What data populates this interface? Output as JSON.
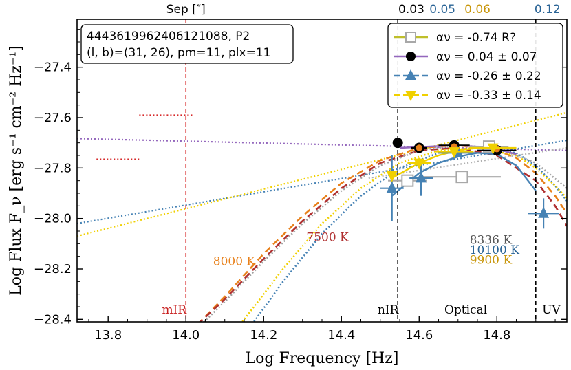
{
  "chart_data": {
    "type": "scatter",
    "title": "",
    "xlabel": "Log Frequency [Hz]",
    "ylabel": "Log Flux F_ν [erg s⁻¹ cm⁻² Hz⁻¹]",
    "xlim": [
      13.72,
      14.98
    ],
    "ylim": [
      -28.41,
      -27.21
    ],
    "xticks": [
      13.8,
      14.0,
      14.2,
      14.4,
      14.6,
      14.8
    ],
    "xtick_labels": [
      "13.8",
      "14.0",
      "14.2",
      "14.4",
      "14.6",
      "14.8"
    ],
    "yticks": [
      -28.4,
      -28.2,
      -28.0,
      -27.8,
      -27.6,
      -27.4
    ],
    "ytick_labels": [
      "−28.4",
      "−28.2",
      "−28.0",
      "−27.8",
      "−27.6",
      "−27.4"
    ],
    "info_box": {
      "line1": "4443619962406121088, P2",
      "line2": "(l, b)=(31, 26), pm=11, plx=11"
    },
    "top_axis": {
      "label": "Sep [″]",
      "labels": [
        {
          "text": "0.03",
          "x": 14.58,
          "color": "#000000"
        },
        {
          "text": "0.05",
          "x": 14.66,
          "color": "#2a6496"
        },
        {
          "text": "0.06",
          "x": 14.75,
          "color": "#c8960a"
        },
        {
          "text": "0.12",
          "x": 14.93,
          "color": "#2a6496"
        }
      ]
    },
    "legend": [
      {
        "label": "αν = -0.74   R?",
        "color": "#bfbf2a",
        "marker": "square-open",
        "dashed": false
      },
      {
        "label": "αν =  0.04 ± 0.07",
        "color": "#9467bd",
        "marker": "circle",
        "dashed": false
      },
      {
        "label": "αν = -0.26 ± 0.22",
        "color": "#4682b4",
        "marker": "triangle-up",
        "dashed": true
      },
      {
        "label": "αν = -0.33 ± 0.14",
        "color": "#f0d000",
        "marker": "triangle-down",
        "dashed": true
      }
    ],
    "vlines": [
      {
        "x": 14.0,
        "color": "#d62728",
        "label": "mIR"
      },
      {
        "x": 14.545,
        "color": "#000000",
        "label": "nIR"
      },
      {
        "x": 14.9,
        "color": "#000000",
        "label": "UV"
      }
    ],
    "region_labels": [
      {
        "text": "mIR",
        "x": 13.97,
        "color": "#c82020"
      },
      {
        "text": "nIR",
        "x": 14.52,
        "color": "#000000"
      },
      {
        "text": "Optical",
        "x": 14.72,
        "color": "#000000"
      },
      {
        "text": "UV",
        "x": 14.94,
        "color": "#000000"
      }
    ],
    "temperature_labels": [
      {
        "text": "8000 K",
        "x": 14.07,
        "y": -28.185,
        "color": "#e8801a"
      },
      {
        "text": "7500 K",
        "x": 14.31,
        "y": -28.09,
        "color": "#b03030"
      },
      {
        "text": "8336 K",
        "x": 14.73,
        "y": -28.1,
        "color": "#555555"
      },
      {
        "text": "10100 K",
        "x": 14.73,
        "y": -28.14,
        "color": "#2a6496"
      },
      {
        "text": "9900 K",
        "x": 14.73,
        "y": -28.18,
        "color": "#c8960a"
      }
    ],
    "powerlaw_lines": [
      {
        "name": "purple",
        "color": "#9467bd",
        "x": [
          13.72,
          14.98
        ],
        "y": [
          -27.683,
          -27.73
        ]
      },
      {
        "name": "blue",
        "color": "#4682b4",
        "x": [
          13.72,
          14.98
        ],
        "y": [
          -28.02,
          -27.69
        ]
      },
      {
        "name": "yellow",
        "color": "#f0d000",
        "x": [
          13.72,
          14.98
        ],
        "y": [
          -28.07,
          -27.58
        ]
      },
      {
        "name": "grey",
        "color": "#b0b0b0",
        "x": [
          14.47,
          14.98
        ],
        "y": [
          -27.84,
          -27.72
        ]
      }
    ],
    "blackbody_curves": [
      {
        "name": "8000 K",
        "color": "#e8801a",
        "dashed": true,
        "x": [
          14.03,
          14.1,
          14.2,
          14.3,
          14.4,
          14.5,
          14.6,
          14.7,
          14.8,
          14.85,
          14.9,
          14.95,
          14.98
        ],
        "y": [
          -28.42,
          -28.31,
          -28.14,
          -27.99,
          -27.86,
          -27.77,
          -27.72,
          -27.71,
          -27.73,
          -27.76,
          -27.82,
          -27.91,
          -27.98
        ]
      },
      {
        "name": "7500 K",
        "color": "#b03030",
        "dashed": true,
        "x": [
          14.03,
          14.1,
          14.2,
          14.3,
          14.4,
          14.5,
          14.6,
          14.7,
          14.8,
          14.9,
          14.95,
          14.98
        ],
        "y": [
          -28.42,
          -28.32,
          -28.16,
          -28.01,
          -27.88,
          -27.78,
          -27.73,
          -27.72,
          -27.75,
          -27.85,
          -27.95,
          -28.03
        ]
      },
      {
        "name": "8336 K",
        "color": "#a0a0a0",
        "dashed": false,
        "x": [
          14.04,
          14.1,
          14.2,
          14.3,
          14.4,
          14.5,
          14.6,
          14.7,
          14.8,
          14.9,
          14.98
        ],
        "y": [
          -28.42,
          -28.33,
          -28.17,
          -28.02,
          -27.89,
          -27.79,
          -27.73,
          -27.71,
          -27.72,
          -27.78,
          -27.88
        ]
      },
      {
        "name": "10100 K blue dotted",
        "color": "#4682b4",
        "dashed": false,
        "x": [
          14.17,
          14.25,
          14.35,
          14.45,
          14.55,
          14.65,
          14.75,
          14.85,
          14.9,
          14.95,
          14.98
        ],
        "y": [
          -28.42,
          -28.25,
          -28.06,
          -27.91,
          -27.8,
          -27.74,
          -27.72,
          -27.74,
          -27.79,
          -27.87,
          -27.93
        ]
      },
      {
        "name": "9900 K yellow dotted",
        "color": "#f0d000",
        "dashed": false,
        "x": [
          14.14,
          14.25,
          14.35,
          14.45,
          14.55,
          14.65,
          14.75,
          14.85,
          14.9,
          14.95,
          14.98
        ],
        "y": [
          -28.42,
          -28.2,
          -28.02,
          -27.88,
          -27.78,
          -27.73,
          -27.72,
          -27.75,
          -27.8,
          -27.87,
          -27.92
        ]
      }
    ],
    "fit_curves": [
      {
        "name": "blue fit",
        "color": "#4682b4",
        "x": [
          14.53,
          14.6,
          14.65,
          14.7,
          14.75,
          14.8,
          14.85,
          14.9
        ],
        "y": [
          -27.91,
          -27.82,
          -27.78,
          -27.755,
          -27.74,
          -27.745,
          -27.79,
          -27.89
        ]
      },
      {
        "name": "purple fit",
        "color": "#9467bd",
        "x": [
          14.55,
          14.62,
          14.69,
          14.75,
          14.8,
          14.85
        ],
        "y": [
          -27.72,
          -27.715,
          -27.71,
          -27.715,
          -27.725,
          -27.745
        ]
      },
      {
        "name": "yellow fit",
        "color": "#f0d000",
        "x": [
          14.53,
          14.6,
          14.65,
          14.7,
          14.75,
          14.8
        ],
        "y": [
          -27.84,
          -27.78,
          -27.75,
          -27.73,
          -27.72,
          -27.72
        ]
      }
    ],
    "limits": [
      {
        "x": [
          13.88,
          14.02
        ],
        "y": -27.59,
        "color": "#d62728"
      },
      {
        "x": [
          13.77,
          13.88
        ],
        "y": -27.765,
        "color": "#d62728"
      }
    ],
    "series": [
      {
        "name": "grey (R?)",
        "color": "#a8a8a8",
        "marker": "square-open",
        "points": [
          {
            "x": 14.57,
            "y": -27.85,
            "xerr": 0.05,
            "yerr": 0.01
          },
          {
            "x": 14.71,
            "y": -27.835,
            "xerr": 0.1,
            "yerr": 0.01
          },
          {
            "x": 14.78,
            "y": -27.715,
            "xerr": 0.05,
            "yerr": 0.01
          }
        ]
      },
      {
        "name": "black",
        "color": "#000000",
        "marker": "circle",
        "points": [
          {
            "x": 14.545,
            "y": -27.7,
            "xerr": 0.0,
            "yerr": 0.02
          },
          {
            "x": 14.6,
            "y": -27.72,
            "xerr": 0.02,
            "yerr": 0.01
          },
          {
            "x": 14.69,
            "y": -27.71,
            "xerr": 0.04,
            "yerr": 0.01
          },
          {
            "x": 14.8,
            "y": -27.73,
            "xerr": 0.05,
            "yerr": 0.01
          }
        ]
      },
      {
        "name": "orange",
        "color": "#e8801a",
        "marker": "circle",
        "points": [
          {
            "x": 14.6,
            "y": -27.72
          },
          {
            "x": 14.69,
            "y": -27.715
          },
          {
            "x": 14.8,
            "y": -27.725
          }
        ]
      },
      {
        "name": "blue",
        "color": "#4682b4",
        "marker": "triangle-up",
        "points": [
          {
            "x": 14.53,
            "y": -27.88,
            "xerr": 0.03,
            "yerr": 0.13
          },
          {
            "x": 14.605,
            "y": -27.84,
            "xerr": 0.03,
            "yerr": 0.07
          },
          {
            "x": 14.7,
            "y": -27.74,
            "xerr": 0.05,
            "yerr": 0.01
          },
          {
            "x": 14.92,
            "y": -27.98,
            "xerr": 0.04,
            "yerr": 0.06
          }
        ]
      },
      {
        "name": "yellow",
        "color": "#f0d000",
        "marker": "triangle-down",
        "points": [
          {
            "x": 14.53,
            "y": -27.83,
            "xerr": 0.0,
            "yerr": 0.02
          },
          {
            "x": 14.6,
            "y": -27.78,
            "xerr": 0.03,
            "yerr": 0.02
          },
          {
            "x": 14.69,
            "y": -27.735,
            "xerr": 0.05,
            "yerr": 0.01
          },
          {
            "x": 14.79,
            "y": -27.72,
            "xerr": 0.06,
            "yerr": 0.01
          }
        ]
      }
    ]
  }
}
